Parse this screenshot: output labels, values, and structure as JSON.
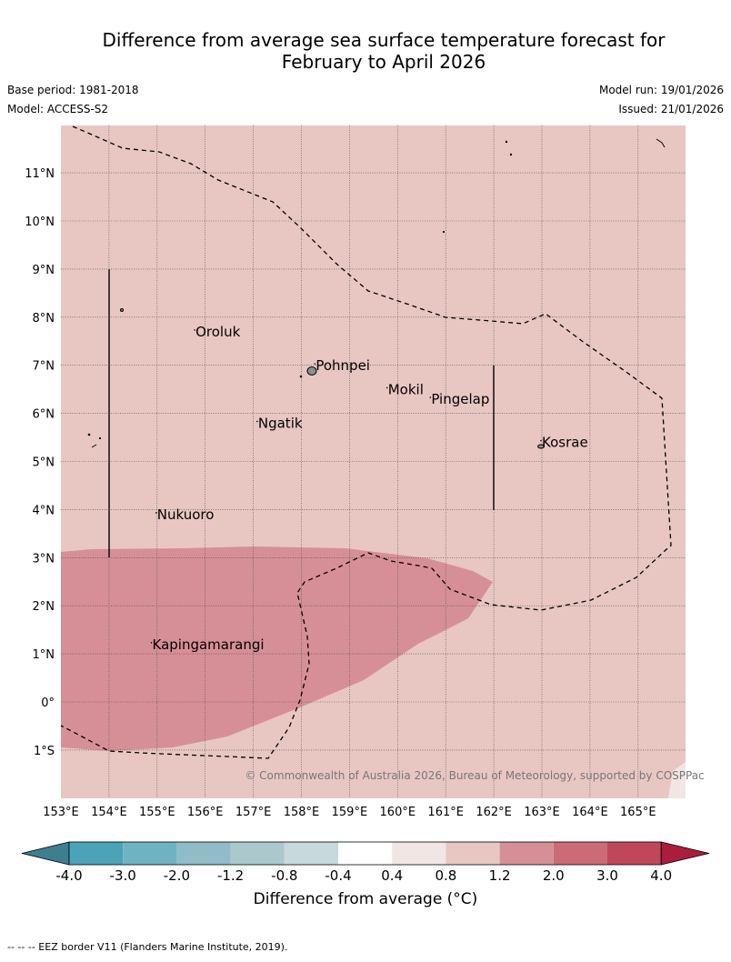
{
  "title_line1": "Difference from average sea surface temperature forecast for",
  "title_line2": "February to April 2026",
  "base_period": "Base period: 1981-2018",
  "model": "Model: ACCESS-S2",
  "model_run": "Model run: 19/01/2026",
  "issued": "Issued: 21/01/2026",
  "copyright": "© Commonwealth of Australia 2026, Bureau of Meteorology, supported by COSPPac",
  "lat_labels": [
    "11°N",
    "10°N",
    "9°N",
    "8°N",
    "7°N",
    "6°N",
    "5°N",
    "4°N",
    "3°N",
    "2°N",
    "1°N",
    "0°",
    "1°S"
  ],
  "lon_labels": [
    "153°E",
    "154°E",
    "155°E",
    "156°E",
    "157°E",
    "158°E",
    "159°E",
    "160°E",
    "161°E",
    "162°E",
    "163°E",
    "164°E",
    "165°E"
  ],
  "places": [
    {
      "name": "Oroluk",
      "lon": 155.8,
      "lat": 7.6
    },
    {
      "name": "Pohnpei",
      "lon": 158.3,
      "lat": 6.9
    },
    {
      "name": "Mokil",
      "lon": 159.8,
      "lat": 6.4
    },
    {
      "name": "Pingelap",
      "lon": 160.7,
      "lat": 6.2
    },
    {
      "name": "Ngatik",
      "lon": 157.1,
      "lat": 5.7
    },
    {
      "name": "Kosrae",
      "lon": 163.0,
      "lat": 5.3
    },
    {
      "name": "Nukuoro",
      "lon": 155.0,
      "lat": 3.8
    },
    {
      "name": "Kapingamarangi",
      "lon": 154.9,
      "lat": 1.1
    }
  ],
  "colorbar": {
    "ticks": [
      "-4.0",
      "-3.0",
      "-2.0",
      "-1.2",
      "-0.8",
      "-0.4",
      "0.4",
      "0.8",
      "1.2",
      "2.0",
      "3.0",
      "4.0"
    ],
    "colors": [
      "#3d7f8e",
      "#4aa3b6",
      "#6fb3c3",
      "#8fbcc6",
      "#abc9cd",
      "#c8d9dc",
      "#ffffff",
      "#f1e6e4",
      "#e8c7c3",
      "#d78f97",
      "#cc6b76",
      "#c0475a",
      "#aa1d3c"
    ],
    "label": "Difference from average (°C)"
  },
  "footer": "--  --  -- EEZ border V11 (Flanders Marine Institute, 2019)."
}
